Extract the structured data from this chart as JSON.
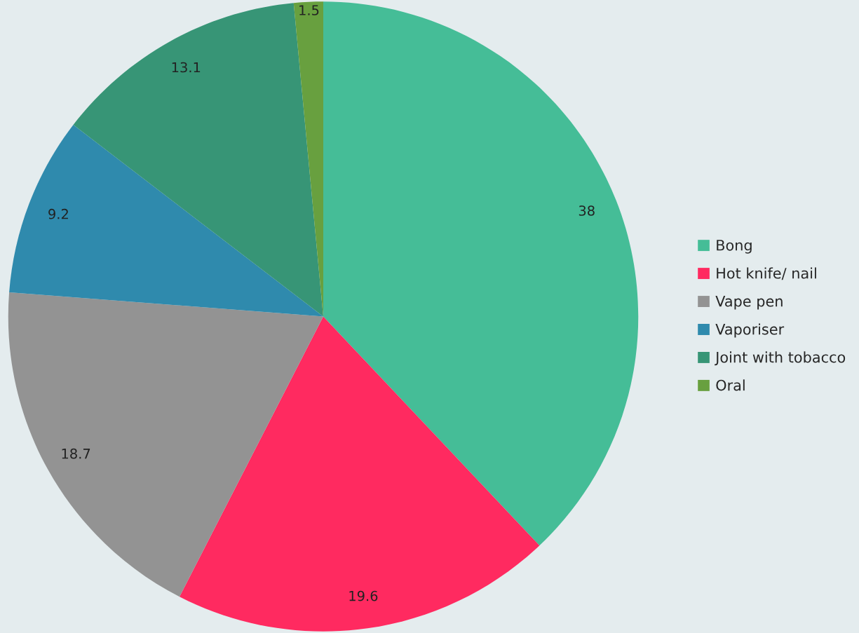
{
  "chart_data": {
    "type": "pie",
    "categories": [
      "Bong",
      "Hot knife/ nail",
      "Vape pen",
      "Vaporiser",
      "Joint with tobacco",
      "Oral"
    ],
    "values": [
      38,
      19.6,
      18.7,
      9.2,
      13.1,
      1.5
    ],
    "colors": [
      "#45bd97",
      "#ff2a60",
      "#939393",
      "#2f8aad",
      "#379576",
      "#68a03f"
    ],
    "data_labels": true,
    "legend": "right"
  }
}
